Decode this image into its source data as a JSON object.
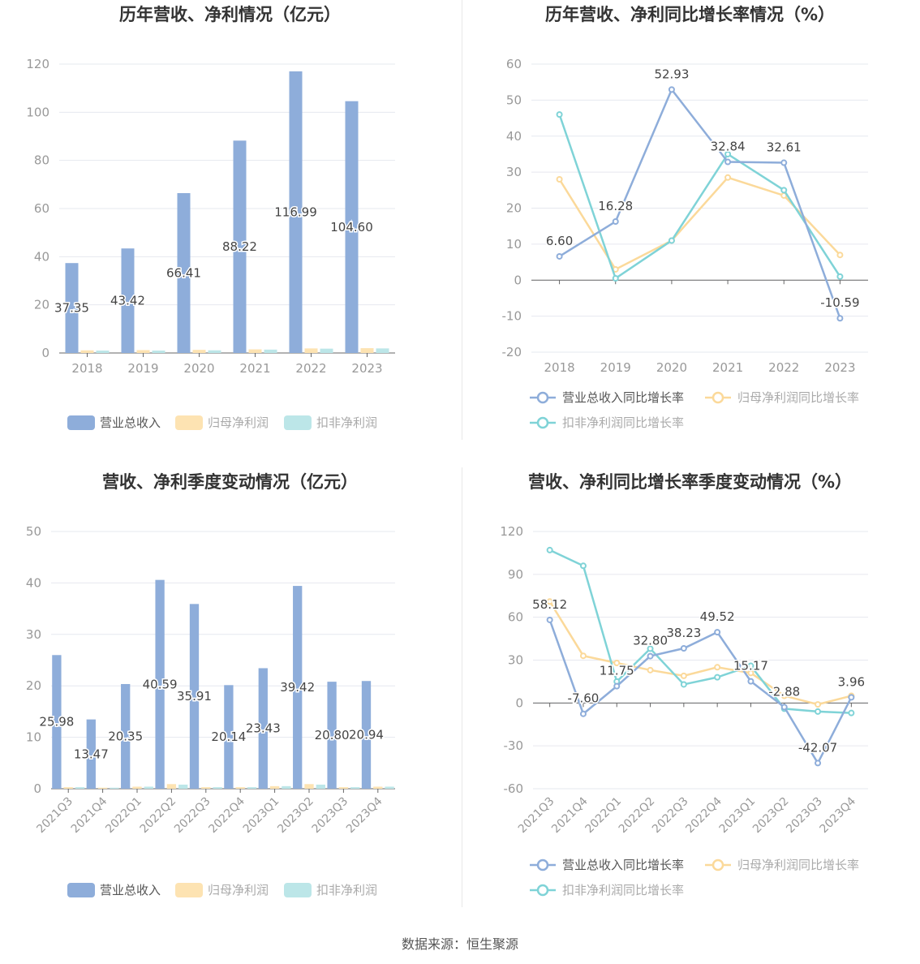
{
  "source_text": "数据来源：恒生聚源",
  "colors": {
    "revenue": "#8eadda",
    "net_profit": "#fde3b2",
    "deducted_profit": "#bce6e8",
    "revenue_line": "#8eadda",
    "net_line": "#fbd99a",
    "deducted_line": "#7fd3d7",
    "axis_text": "#999999",
    "grid": "#e6e8ef",
    "label": "#444444"
  },
  "chart_data": [
    {
      "id": "annual-bar",
      "type": "bar",
      "title": "历年营收、净利情况（亿元）",
      "categories": [
        "2018",
        "2019",
        "2020",
        "2021",
        "2022",
        "2023"
      ],
      "ylim": [
        0,
        120
      ],
      "yticks": [
        0,
        20,
        40,
        60,
        80,
        100,
        120
      ],
      "grid": true,
      "legend_position": "bottom",
      "label_series": 0,
      "series": [
        {
          "name": "营业总收入",
          "values": [
            37.35,
            43.42,
            66.41,
            88.22,
            116.99,
            104.6
          ],
          "labels": [
            "37.35",
            "43.42",
            "66.41",
            "88.22",
            "116.99",
            "104.60"
          ]
        },
        {
          "name": "归母净利润",
          "values": [
            1.1,
            1.2,
            1.3,
            1.5,
            1.9,
            2.0
          ]
        },
        {
          "name": "扣非净利润",
          "values": [
            1.0,
            1.0,
            1.1,
            1.4,
            1.8,
            1.9
          ]
        }
      ]
    },
    {
      "id": "annual-growth",
      "type": "line",
      "title": "历年营收、净利同比增长率情况（%）",
      "categories": [
        "2018",
        "2019",
        "2020",
        "2021",
        "2022",
        "2023"
      ],
      "ylim": [
        -20,
        60
      ],
      "yticks": [
        -20,
        -10,
        0,
        10,
        20,
        30,
        40,
        50,
        60
      ],
      "grid": true,
      "legend_position": "bottom",
      "series": [
        {
          "name": "营业总收入同比增长率",
          "values": [
            6.6,
            16.28,
            52.93,
            32.84,
            32.61,
            -10.59
          ],
          "labels": [
            "6.60",
            "16.28",
            "52.93",
            "32.84",
            "32.61",
            "-10.59"
          ]
        },
        {
          "name": "归母净利润同比增长率",
          "values": [
            28,
            3,
            11,
            28.5,
            23.5,
            7
          ]
        },
        {
          "name": "扣非净利润同比增长率",
          "values": [
            46,
            0.5,
            11,
            35,
            25,
            1
          ]
        }
      ]
    },
    {
      "id": "quarter-bar",
      "type": "bar",
      "title": "营收、净利季度变动情况（亿元）",
      "categories": [
        "2021Q3",
        "2021Q4",
        "2022Q1",
        "2022Q2",
        "2022Q3",
        "2022Q4",
        "2023Q1",
        "2023Q2",
        "2023Q3",
        "2023Q4"
      ],
      "ylim": [
        0,
        50
      ],
      "yticks": [
        0,
        10,
        20,
        30,
        40,
        50
      ],
      "grid": true,
      "legend_position": "bottom",
      "label_series": 0,
      "series": [
        {
          "name": "营业总收入",
          "values": [
            25.98,
            13.47,
            20.35,
            40.59,
            35.91,
            20.14,
            23.43,
            39.42,
            20.8,
            20.94
          ],
          "labels": [
            "25.98",
            "13.47",
            "20.35",
            "40.59",
            "35.91",
            "20.14",
            "23.43",
            "39.42",
            "20.80",
            "20.94"
          ]
        },
        {
          "name": "归母净利润",
          "values": [
            0.3,
            0.2,
            0.4,
            0.9,
            0.3,
            0.3,
            0.5,
            0.9,
            0.3,
            0.4
          ]
        },
        {
          "name": "扣非净利润",
          "values": [
            0.3,
            0.2,
            0.4,
            0.8,
            0.3,
            0.3,
            0.5,
            0.8,
            0.3,
            0.4
          ]
        }
      ]
    },
    {
      "id": "quarter-growth",
      "type": "line",
      "title": "营收、净利同比增长率季度变动情况（%）",
      "categories": [
        "2021Q3",
        "2021Q4",
        "2022Q1",
        "2022Q2",
        "2022Q3",
        "2022Q4",
        "2023Q1",
        "2023Q2",
        "2023Q3",
        "2023Q4"
      ],
      "ylim": [
        -60,
        120
      ],
      "yticks": [
        -60,
        -30,
        0,
        30,
        60,
        90,
        120
      ],
      "grid": true,
      "legend_position": "bottom",
      "series": [
        {
          "name": "营业总收入同比增长率",
          "values": [
            58.12,
            -7.6,
            11.75,
            32.8,
            38.23,
            49.52,
            15.17,
            -2.88,
            -42.07,
            3.96
          ],
          "labels": [
            "58.12",
            "-7.60",
            "11.75",
            "32.80",
            "38.23",
            "49.52",
            "15.17",
            "-2.88",
            "-42.07",
            "3.96"
          ]
        },
        {
          "name": "归母净利润同比增长率",
          "values": [
            71,
            33,
            28,
            23,
            19,
            25,
            21,
            5,
            -1,
            5
          ]
        },
        {
          "name": "扣非净利润同比增长率",
          "values": [
            107,
            96,
            15,
            38,
            13,
            18,
            26,
            -4,
            -6,
            -7
          ]
        }
      ]
    }
  ]
}
